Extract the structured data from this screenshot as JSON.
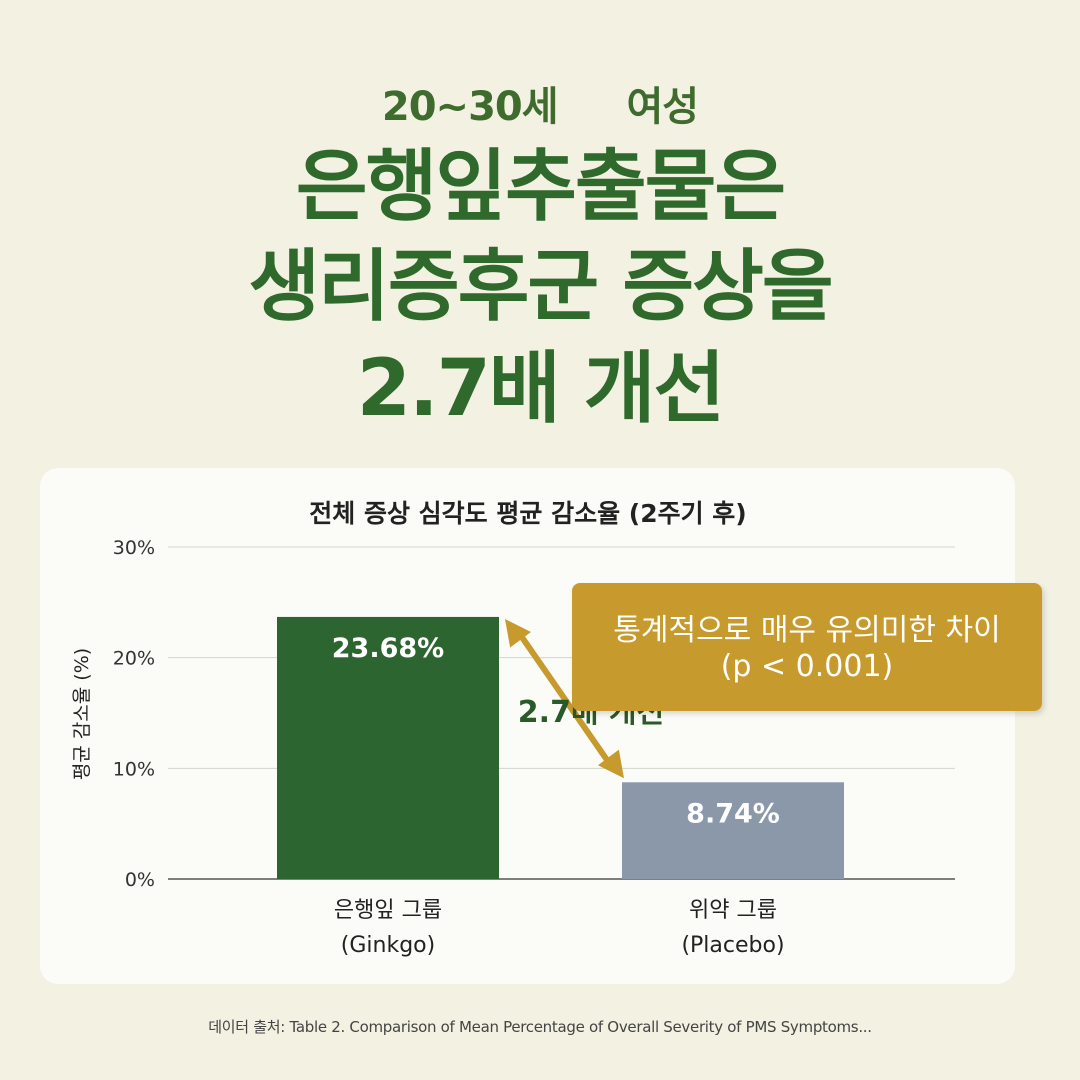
{
  "header": {
    "sub_left": "20~30세",
    "sub_right": "여성",
    "title_lines": [
      "은행잎추출물은",
      "생리증후군 증상을",
      "2.7배 개선"
    ]
  },
  "callout": {
    "line1": "통계적으로 매우 유의미한 차이",
    "line2": "(p < 0.001)"
  },
  "arrow_label": "2.7배 개선",
  "footer": "데이터 출처: Table 2. Comparison of Mean Percentage of Overall Severity of PMS Symptoms...",
  "colors": {
    "background": "#f3f1e2",
    "title_green": "#2f6a2c",
    "bar_ginkgo": "#2d6531",
    "bar_placebo": "#8a98aa",
    "callout": "#c79a2e",
    "arrow": "#c79a2e"
  },
  "chart_data": {
    "type": "bar",
    "title": "전체 증상 심각도 평균 감소율 (2주기 후)",
    "ylabel": "평균 감소율 (%)",
    "xlabel": "",
    "ylim": [
      0,
      30
    ],
    "yticks": [
      "0%",
      "10%",
      "20%",
      "30%"
    ],
    "grid": true,
    "categories": [
      {
        "line1": "은행잎 그룹",
        "line2": "(Ginkgo)"
      },
      {
        "line1": "위약 그룹",
        "line2": "(Placebo)"
      }
    ],
    "values": [
      23.68,
      8.74
    ],
    "data_labels": [
      "23.68%",
      "8.74%"
    ]
  }
}
